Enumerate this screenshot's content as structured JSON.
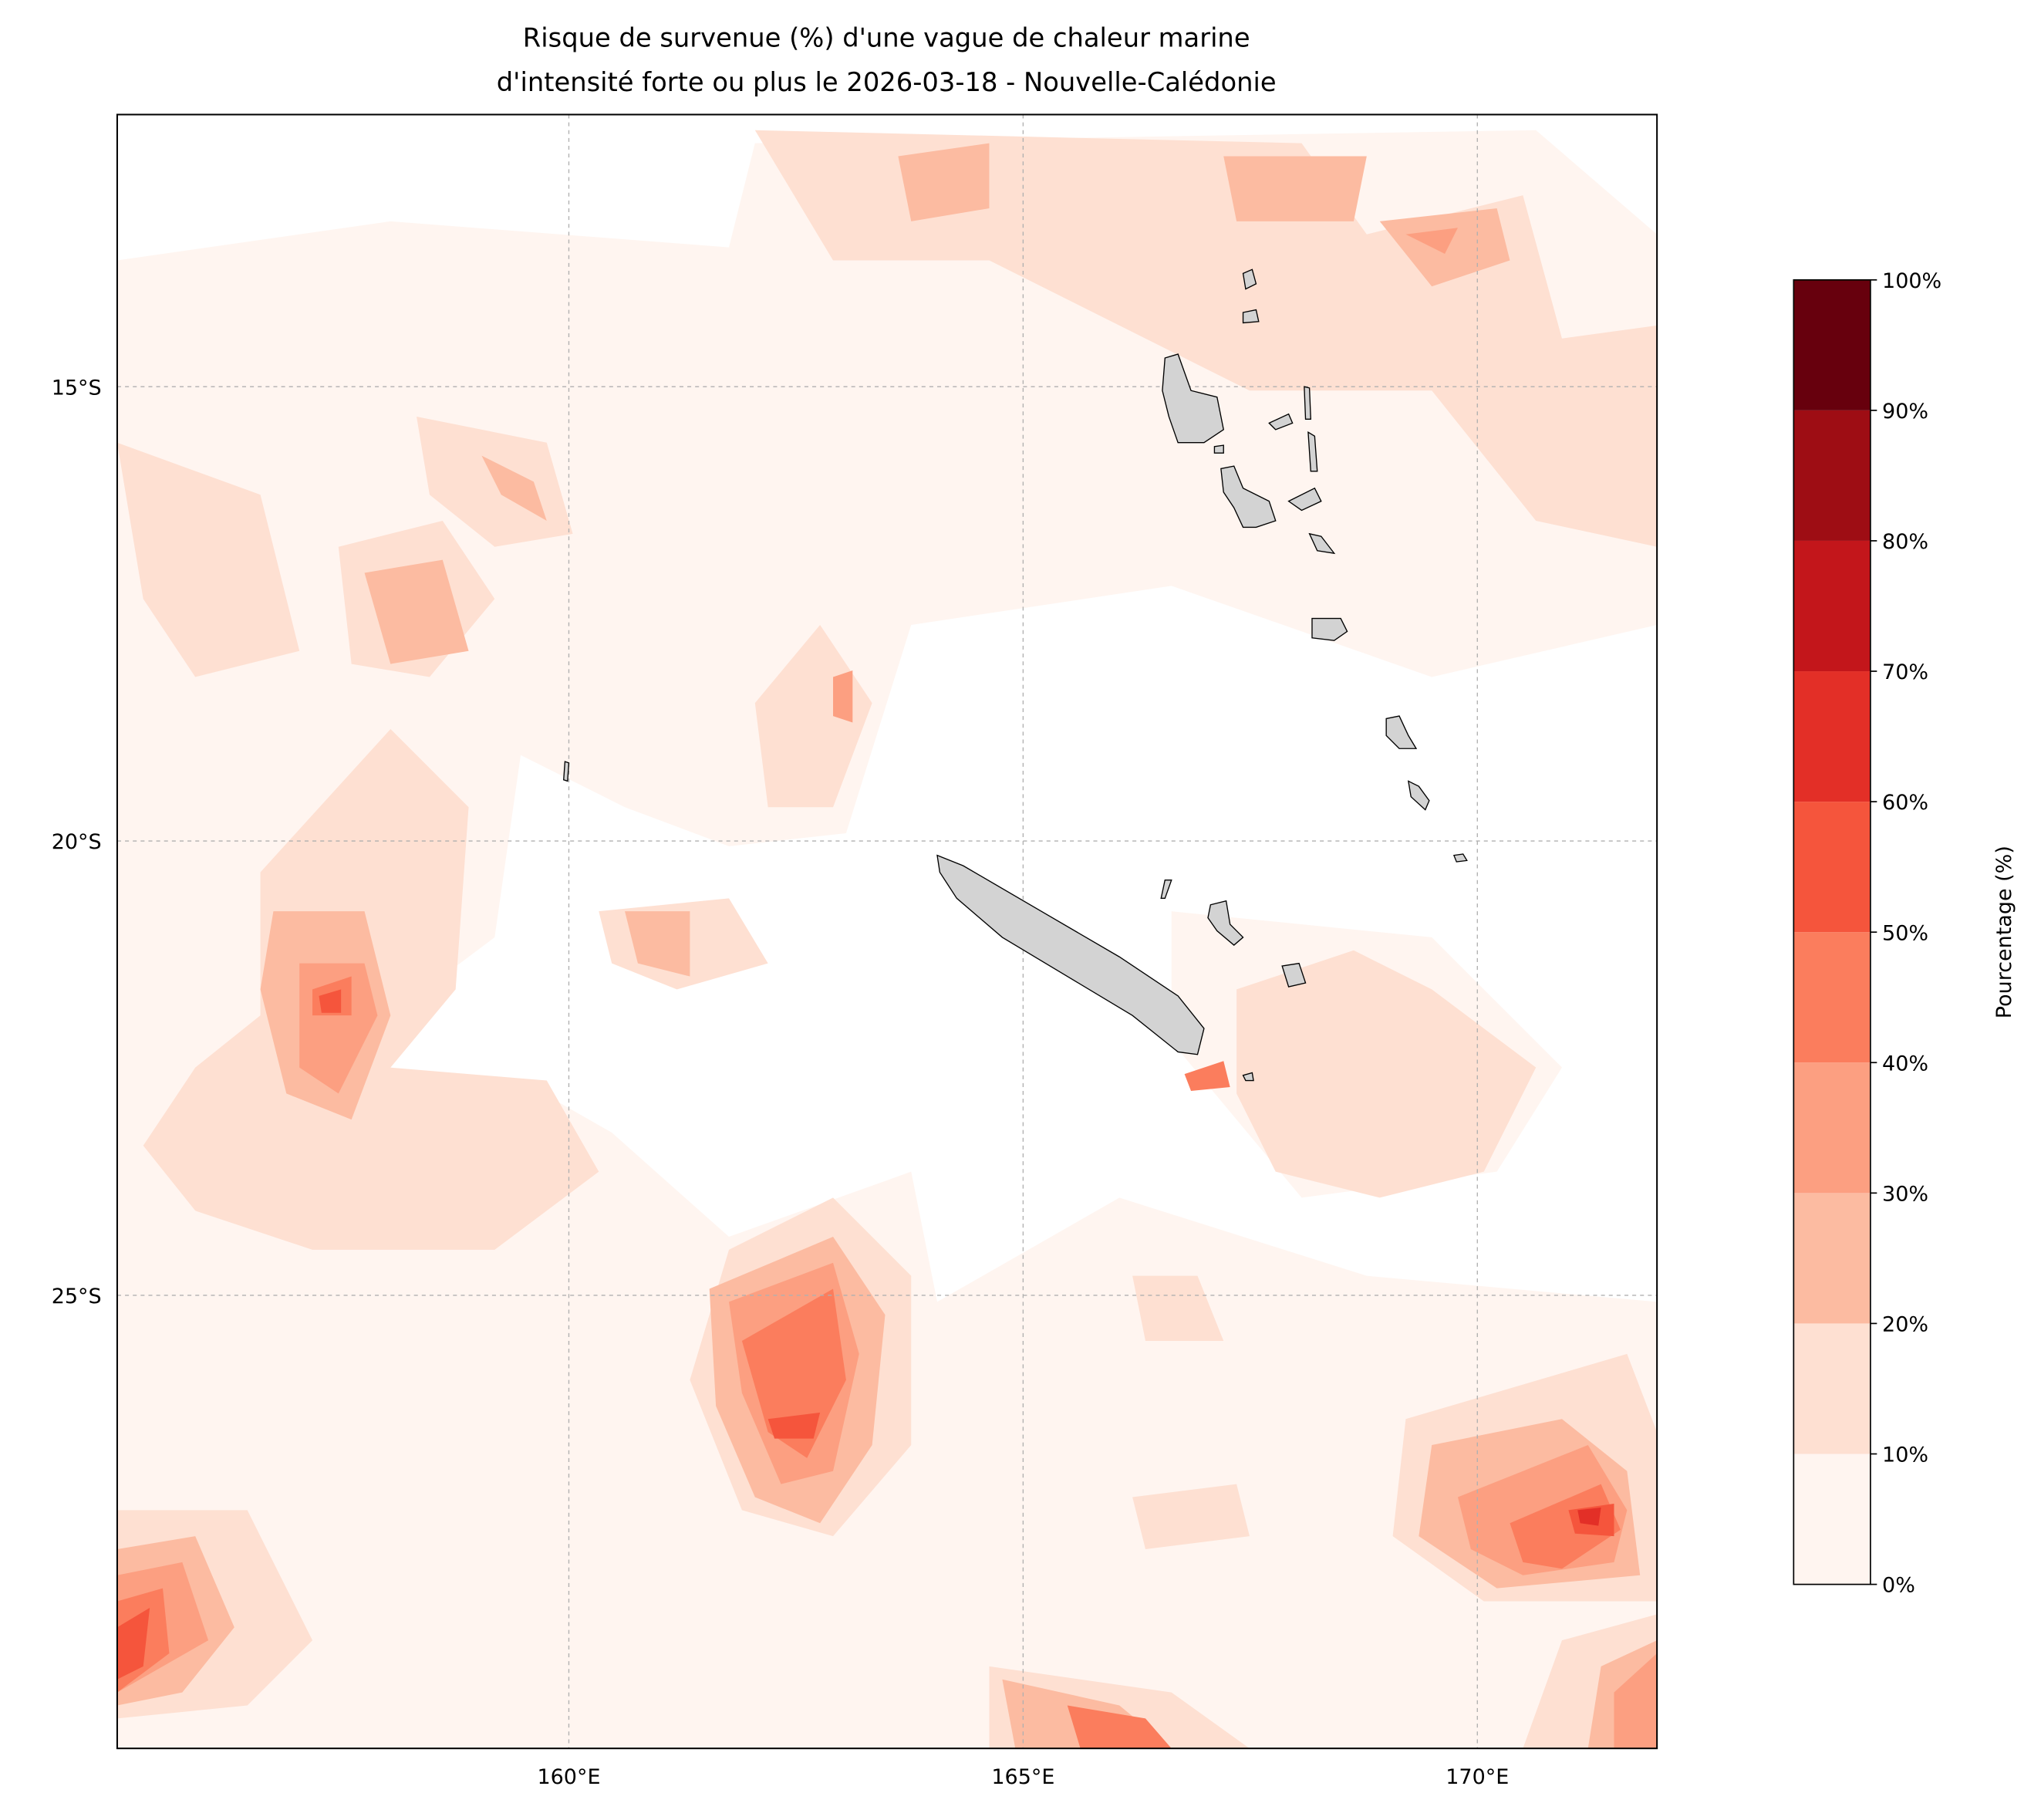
{
  "title_line1": "Risque de survenue (%) d'une vague de chaleur marine",
  "title_line2": "d'intensité forte ou plus le 2026-03-18 - Nouvelle-Calédonie",
  "chart_data": {
    "type": "heatmap",
    "title": "Risque de survenue (%) d'une vague de chaleur marine d'intensité forte ou plus le 2026-03-18 - Nouvelle-Calédonie",
    "region": "Nouvelle-Calédonie",
    "date": "2026-03-18",
    "xlim": [
      155,
      172
    ],
    "ylim": [
      -30,
      -12
    ],
    "x_ticks": [
      160,
      165,
      170
    ],
    "x_tick_labels": [
      "160°E",
      "165°E",
      "170°E"
    ],
    "y_ticks": [
      -15,
      -20,
      -25
    ],
    "y_tick_labels": [
      "15°S",
      "20°S",
      "25°S"
    ],
    "grid": true,
    "colorbar": {
      "label": "Pourcentage (%)",
      "levels": [
        0,
        10,
        20,
        30,
        40,
        50,
        60,
        70,
        80,
        90,
        100
      ],
      "tick_labels": [
        "0%",
        "10%",
        "20%",
        "30%",
        "40%",
        "50%",
        "60%",
        "70%",
        "80%",
        "90%",
        "100%"
      ],
      "colors": [
        "#fff5f0",
        "#fee0d2",
        "#fcbba1",
        "#fc9f81",
        "#fb7d5d",
        "#f5553c",
        "#e32f27",
        "#c3161b",
        "#9e0d14",
        "#67000d"
      ],
      "placement": "right"
    },
    "hotspots": [
      {
        "name": "south-central 162-163E 26S",
        "max_percent": 60
      },
      {
        "name": "southeast 171E 27.5S",
        "max_percent": 70
      },
      {
        "name": "southwest corner 155E 29S",
        "max_percent": 60
      },
      {
        "name": "west 157E 21.5S",
        "max_percent": 60
      },
      {
        "name": "south 166E 29.5S",
        "max_percent": 50
      },
      {
        "name": "south of Grande Terre 167E 22.5S",
        "max_percent": 60
      }
    ]
  }
}
